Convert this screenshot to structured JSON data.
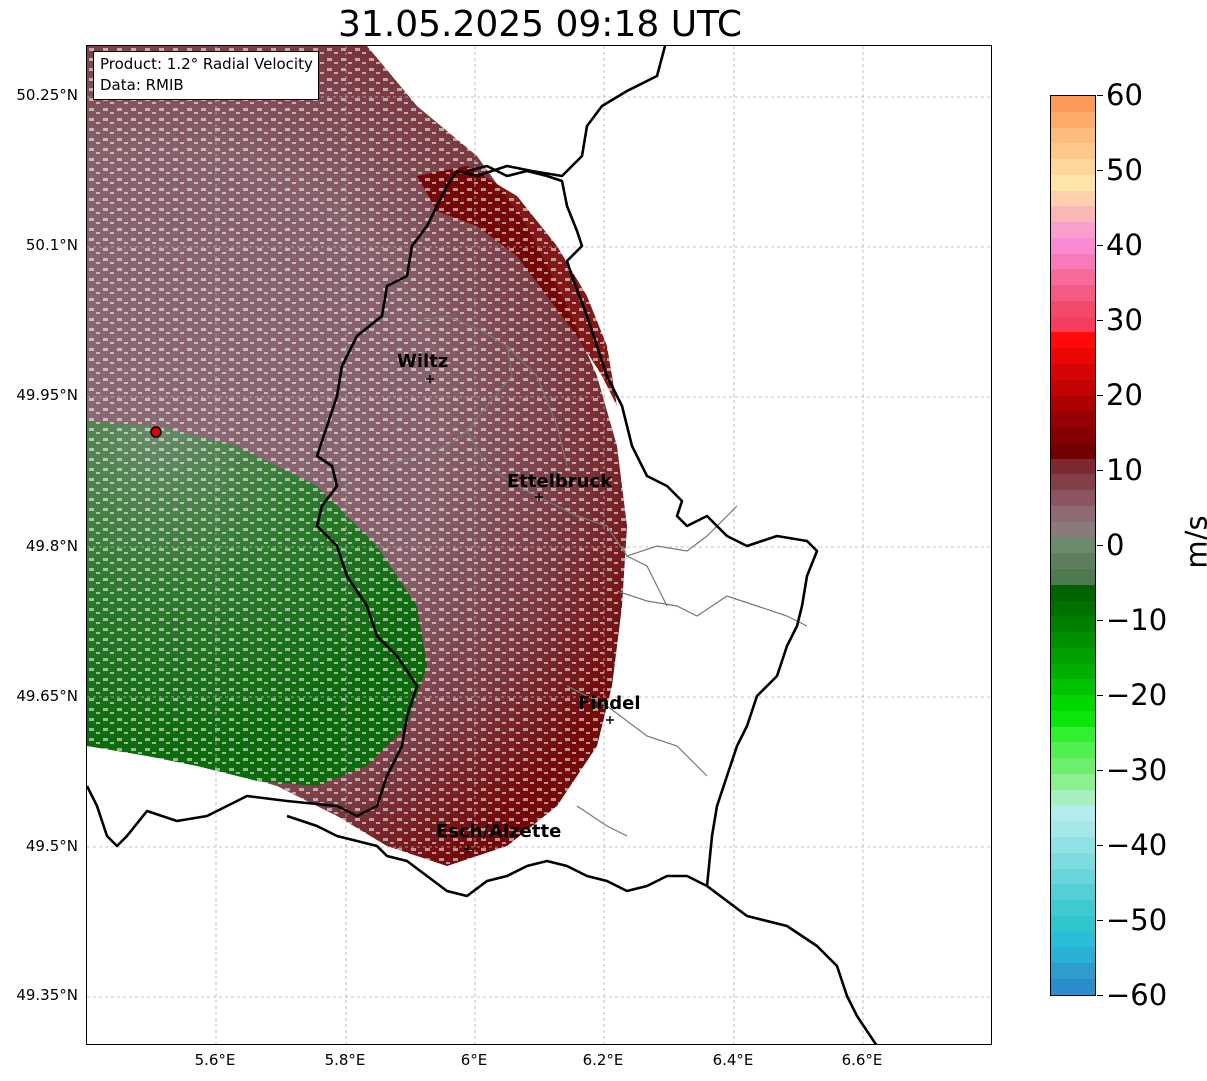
{
  "title": "31.05.2025 09:18 UTC",
  "info": {
    "product": "Product: 1.2° Radial Velocity",
    "data": "Data: RMIB"
  },
  "lat_ticks": [
    "50.25°N",
    "50.1°N",
    "49.95°N",
    "49.8°N",
    "49.65°N",
    "49.5°N",
    "49.35°N"
  ],
  "lon_ticks": [
    "5.6°E",
    "5.8°E",
    "6°E",
    "6.2°E",
    "6.4°E",
    "6.6°E"
  ],
  "cities": [
    {
      "name": "Wiltz"
    },
    {
      "name": "Ettelbruck"
    },
    {
      "name": "Findel"
    },
    {
      "name": "Esch/Alzette"
    }
  ],
  "colorbar": {
    "unit": "m/s",
    "range": [
      -60,
      60
    ],
    "ticks": [
      "60",
      "50",
      "40",
      "30",
      "20",
      "10",
      "0",
      "−10",
      "−20",
      "−30",
      "−40",
      "−50",
      "−60"
    ],
    "colors": [
      "#fd9a5a",
      "#fdaa6a",
      "#fdbb7c",
      "#fec88a",
      "#fed69a",
      "#fee4a6",
      "#fdcfaa",
      "#fbb6b6",
      "#fa9fcc",
      "#f98ad4",
      "#f87ab8",
      "#f76a9a",
      "#f55a82",
      "#f34a6a",
      "#f73d5c",
      "#ff0a0a",
      "#ec0606",
      "#d60404",
      "#c20303",
      "#ad0202",
      "#980101",
      "#850000",
      "#720000",
      "#7a2a30",
      "#834048",
      "#8a5560",
      "#8d6a74",
      "#8a7a7a",
      "#6e8a6e",
      "#5d7f5d",
      "#4f7a4f",
      "#006400",
      "#007000",
      "#008000",
      "#009000",
      "#00a000",
      "#00b000",
      "#00c400",
      "#00d800",
      "#0ae60a",
      "#30f030",
      "#50f050",
      "#6cf06c",
      "#8cf08c",
      "#a6f0c0",
      "#b4ecee",
      "#a4e8ea",
      "#90e2e4",
      "#7cdcdf",
      "#68d6da",
      "#54d0d5",
      "#40cad0",
      "#30c4cc",
      "#28bdd8",
      "#2ab0d6",
      "#2e9ccf",
      "#2c8bcb"
    ],
    "palette": {
      "outbound_dark": "#730000",
      "outbound_mid": "#7e3a42",
      "zero": "#8a6e76",
      "inbound": "#5d7f5d",
      "inbound_dark": "#006400"
    }
  }
}
